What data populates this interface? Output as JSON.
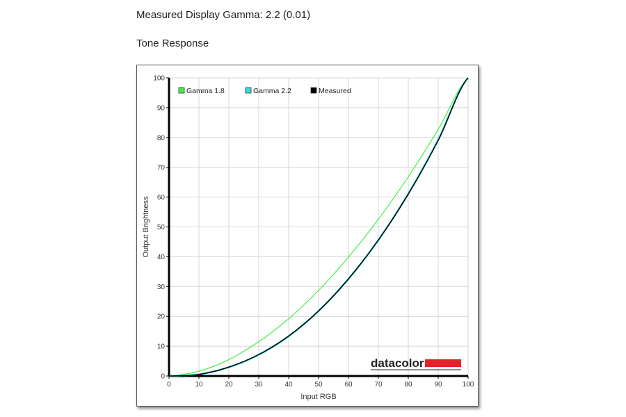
{
  "header": {
    "gamma_text": "Measured Display Gamma: 2.2 (0.01)",
    "section_title": "Tone Response"
  },
  "logo": {
    "text": "datacolor",
    "accent": "#e8202a"
  },
  "chart_data": {
    "type": "line",
    "title": "Tone Response",
    "xlabel": "Input RGB",
    "ylabel": "Output Brightness",
    "xlim": [
      0,
      100
    ],
    "ylim": [
      0,
      100
    ],
    "xticks": [
      0,
      10,
      20,
      30,
      40,
      50,
      60,
      70,
      80,
      90,
      100
    ],
    "yticks": [
      0,
      10,
      20,
      30,
      40,
      50,
      60,
      70,
      80,
      90,
      100
    ],
    "grid": true,
    "legend_placement": "top-left",
    "x": [
      0,
      10,
      20,
      30,
      40,
      50,
      60,
      70,
      80,
      90,
      100
    ],
    "series": [
      {
        "name": "Gamma 1.8",
        "color": "#44ee44",
        "values": [
          0,
          1.6,
          5.5,
          11.5,
          19.2,
          28.7,
          39.9,
          52.6,
          66.8,
          82.7,
          100
        ]
      },
      {
        "name": "Gamma 2.2",
        "color": "#33dddd",
        "values": [
          0,
          0.6,
          2.9,
          7.1,
          13.3,
          21.8,
          32.5,
          45.6,
          61.2,
          79.3,
          100
        ]
      },
      {
        "name": "Measured",
        "color": "#000000",
        "values": [
          0,
          0.5,
          3.0,
          7.2,
          13.4,
          21.8,
          32.6,
          45.6,
          61.0,
          79.0,
          100
        ]
      }
    ]
  }
}
